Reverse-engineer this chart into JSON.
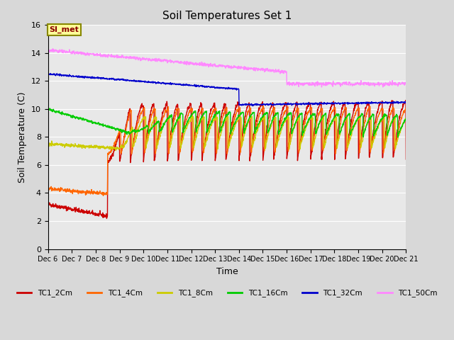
{
  "title": "Soil Temperatures Set 1",
  "xlabel": "Time",
  "ylabel": "Soil Temperature (C)",
  "ylim": [
    0,
    16
  ],
  "yticks": [
    0,
    2,
    4,
    6,
    8,
    10,
    12,
    14,
    16
  ],
  "background_color": "#d8d8d8",
  "plot_bg_color": "#e8e8e8",
  "annotation_text": "SI_met",
  "annotation_bg": "#ffff99",
  "annotation_border": "#888800",
  "colors": {
    "TC1_2Cm": "#cc0000",
    "TC1_4Cm": "#ff6600",
    "TC1_8Cm": "#cccc00",
    "TC1_16Cm": "#00cc00",
    "TC1_32Cm": "#0000cc",
    "TC1_50Cm": "#ff88ff"
  },
  "line_width": 1.0,
  "n_points": 1440,
  "x_start": 6.0,
  "x_end": 21.0,
  "xtick_positions": [
    6,
    7,
    8,
    9,
    10,
    11,
    12,
    13,
    14,
    15,
    16,
    17,
    18,
    19,
    20,
    21
  ],
  "xtick_labels": [
    "Dec 6",
    "Dec 7",
    "Dec 8",
    "Dec 9",
    "Dec 10",
    "Dec 11",
    "Dec 12",
    "Dec 13",
    "Dec 14",
    "Dec 15",
    "Dec 16",
    "Dec 17",
    "Dec 18",
    "Dec 19",
    "Dec 20",
    "Dec 21"
  ]
}
